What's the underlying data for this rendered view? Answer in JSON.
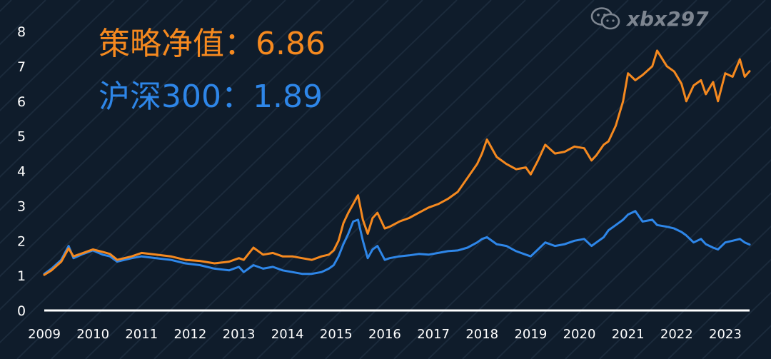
{
  "chart_data": {
    "type": "line",
    "title": "",
    "xlabel": "",
    "ylabel": "",
    "xlim": [
      2009.0,
      2023.5
    ],
    "ylim": [
      0,
      8
    ],
    "yticks": [
      "0",
      "1",
      "2",
      "3",
      "4",
      "5",
      "6",
      "7",
      "8"
    ],
    "xticks": [
      "2009",
      "2010",
      "2011",
      "2012",
      "2013",
      "2014",
      "2015",
      "2016",
      "2017",
      "2018",
      "2019",
      "2020",
      "2021",
      "2022",
      "2023"
    ],
    "grid": false,
    "annotations": [
      {
        "label": "策略净值：",
        "value": "6.86",
        "color": "#f5891f"
      },
      {
        "label": "沪深300：",
        "value": "1.89",
        "color": "#2e86e8"
      }
    ],
    "series": [
      {
        "color": "#f5891f",
        "x": [
          2009.0,
          2009.15,
          2009.35,
          2009.5,
          2009.6,
          2009.8,
          2010.0,
          2010.2,
          2010.35,
          2010.5,
          2010.8,
          2011.0,
          2011.3,
          2011.6,
          2011.9,
          2012.2,
          2012.5,
          2012.8,
          2013.0,
          2013.1,
          2013.3,
          2013.5,
          2013.7,
          2013.9,
          2014.1,
          2014.3,
          2014.5,
          2014.7,
          2014.85,
          2014.95,
          2015.05,
          2015.15,
          2015.25,
          2015.35,
          2015.45,
          2015.55,
          2015.65,
          2015.75,
          2015.85,
          2016.0,
          2016.1,
          2016.3,
          2016.5,
          2016.7,
          2016.9,
          2017.1,
          2017.3,
          2017.5,
          2017.7,
          2017.9,
          2018.0,
          2018.1,
          2018.3,
          2018.5,
          2018.7,
          2018.9,
          2019.0,
          2019.15,
          2019.3,
          2019.5,
          2019.7,
          2019.9,
          2020.1,
          2020.25,
          2020.35,
          2020.5,
          2020.6,
          2020.75,
          2020.9,
          2021.0,
          2021.15,
          2021.3,
          2021.5,
          2021.6,
          2021.8,
          2021.95,
          2022.1,
          2022.2,
          2022.35,
          2022.5,
          2022.6,
          2022.75,
          2022.85,
          2023.0,
          2023.15,
          2023.3,
          2023.4,
          2023.5
        ],
        "values": [
          1.02,
          1.15,
          1.4,
          1.78,
          1.55,
          1.65,
          1.75,
          1.68,
          1.62,
          1.45,
          1.55,
          1.65,
          1.6,
          1.55,
          1.45,
          1.42,
          1.35,
          1.4,
          1.5,
          1.45,
          1.8,
          1.6,
          1.65,
          1.55,
          1.55,
          1.5,
          1.45,
          1.55,
          1.6,
          1.72,
          2.0,
          2.5,
          2.8,
          3.05,
          3.3,
          2.6,
          2.2,
          2.65,
          2.8,
          2.35,
          2.4,
          2.55,
          2.65,
          2.8,
          2.95,
          3.05,
          3.2,
          3.4,
          3.8,
          4.2,
          4.5,
          4.9,
          4.4,
          4.2,
          4.05,
          4.1,
          3.9,
          4.3,
          4.75,
          4.5,
          4.55,
          4.7,
          4.65,
          4.3,
          4.45,
          4.75,
          4.85,
          5.3,
          6.0,
          6.8,
          6.6,
          6.75,
          7.0,
          7.45,
          7.0,
          6.85,
          6.5,
          6.0,
          6.45,
          6.6,
          6.2,
          6.55,
          6.0,
          6.8,
          6.7,
          7.2,
          6.7,
          6.86
        ]
      },
      {
        "color": "#2e86e8",
        "x": [
          2009.0,
          2009.15,
          2009.35,
          2009.5,
          2009.6,
          2009.8,
          2010.0,
          2010.2,
          2010.35,
          2010.5,
          2010.8,
          2011.0,
          2011.3,
          2011.6,
          2011.9,
          2012.2,
          2012.5,
          2012.8,
          2013.0,
          2013.1,
          2013.3,
          2013.5,
          2013.7,
          2013.9,
          2014.1,
          2014.3,
          2014.5,
          2014.7,
          2014.85,
          2014.95,
          2015.05,
          2015.15,
          2015.25,
          2015.35,
          2015.45,
          2015.55,
          2015.65,
          2015.75,
          2015.85,
          2016.0,
          2016.1,
          2016.3,
          2016.5,
          2016.7,
          2016.9,
          2017.1,
          2017.3,
          2017.5,
          2017.7,
          2017.9,
          2018.0,
          2018.1,
          2018.3,
          2018.5,
          2018.7,
          2018.9,
          2019.0,
          2019.15,
          2019.3,
          2019.5,
          2019.7,
          2019.9,
          2020.1,
          2020.25,
          2020.35,
          2020.5,
          2020.6,
          2020.75,
          2020.9,
          2021.0,
          2021.15,
          2021.3,
          2021.5,
          2021.6,
          2021.8,
          2021.95,
          2022.1,
          2022.2,
          2022.35,
          2022.5,
          2022.6,
          2022.75,
          2022.85,
          2023.0,
          2023.15,
          2023.3,
          2023.4,
          2023.5
        ],
        "values": [
          1.05,
          1.2,
          1.45,
          1.85,
          1.5,
          1.62,
          1.72,
          1.6,
          1.55,
          1.4,
          1.5,
          1.55,
          1.5,
          1.45,
          1.35,
          1.3,
          1.2,
          1.15,
          1.25,
          1.1,
          1.3,
          1.2,
          1.25,
          1.15,
          1.1,
          1.05,
          1.05,
          1.1,
          1.2,
          1.3,
          1.55,
          1.9,
          2.2,
          2.55,
          2.6,
          2.0,
          1.5,
          1.75,
          1.85,
          1.45,
          1.5,
          1.55,
          1.58,
          1.62,
          1.6,
          1.65,
          1.7,
          1.72,
          1.8,
          1.95,
          2.05,
          2.1,
          1.9,
          1.85,
          1.7,
          1.6,
          1.55,
          1.75,
          1.95,
          1.85,
          1.9,
          2.0,
          2.05,
          1.85,
          1.95,
          2.1,
          2.3,
          2.45,
          2.6,
          2.75,
          2.85,
          2.55,
          2.6,
          2.45,
          2.4,
          2.35,
          2.25,
          2.15,
          1.95,
          2.05,
          1.9,
          1.8,
          1.75,
          1.95,
          2.0,
          2.05,
          1.95,
          1.89
        ]
      }
    ]
  },
  "watermark": {
    "icon": "wechat-icon",
    "text": "xbx297"
  }
}
